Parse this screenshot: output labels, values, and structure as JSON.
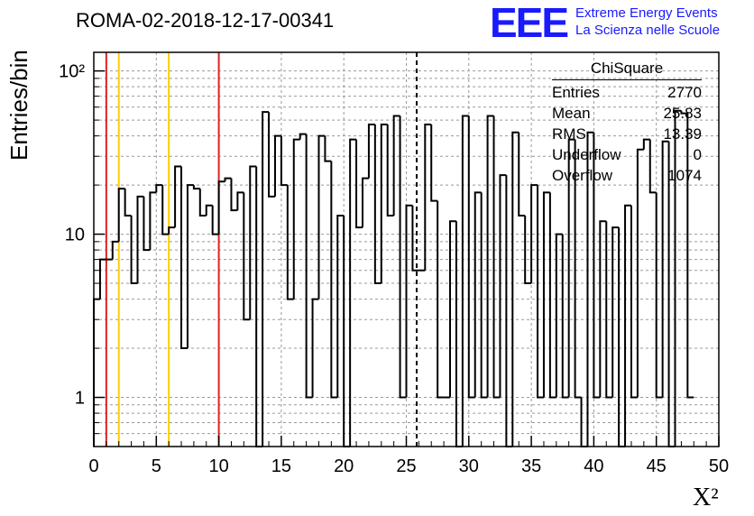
{
  "title": "ROMA-02-2018-12-17-00341",
  "logo": {
    "mark": "EEE",
    "line1": "Extreme Energy Events",
    "line2": "La Scienza nelle Scuole",
    "color": "#1a1aff"
  },
  "stats": {
    "title": "ChiSquare",
    "rows": [
      {
        "label": "Entries",
        "value": "2770"
      },
      {
        "label": "Mean",
        "value": "25.83"
      },
      {
        "label": "RMS",
        "value": "13.39"
      },
      {
        "label": "Underflow",
        "value": "0"
      },
      {
        "label": "Overflow",
        "value": "1074"
      }
    ]
  },
  "chart_data": {
    "type": "histogram",
    "xlabel": "X²",
    "ylabel": "Entries/bin",
    "xlim": [
      0,
      50
    ],
    "ylim": [
      0.5,
      130
    ],
    "y_scale": "log",
    "grid": true,
    "bin_width": 0.5,
    "x_ticks": [
      0,
      5,
      10,
      15,
      20,
      25,
      30,
      35,
      40,
      45,
      50
    ],
    "y_ticks": [
      {
        "value": 1,
        "label": "1"
      },
      {
        "value": 10,
        "label": "10"
      },
      {
        "value": 100,
        "label": "10²"
      }
    ],
    "bin_values": [
      4,
      7,
      7,
      9,
      19,
      13,
      5,
      17,
      8,
      18,
      20,
      10,
      11,
      26,
      2,
      20,
      19,
      13,
      15,
      10,
      21,
      22,
      14,
      18,
      3,
      26,
      0,
      56,
      17,
      40,
      20,
      4,
      38,
      41,
      1,
      4,
      40,
      28,
      1,
      13,
      0,
      38,
      11,
      22,
      47,
      5,
      47,
      13,
      53,
      1,
      15,
      6,
      6,
      47,
      16,
      1,
      1,
      12,
      0,
      53,
      1,
      18,
      1,
      53,
      1,
      23,
      0,
      42,
      13,
      5,
      20,
      1,
      18,
      1,
      10,
      1,
      38,
      1,
      0,
      42,
      1,
      12,
      1,
      11,
      0,
      15,
      1,
      33,
      38,
      18,
      1,
      37,
      0,
      57,
      55,
      1
    ],
    "vlines": [
      {
        "x": 1,
        "color": "#dd2222"
      },
      {
        "x": 2,
        "color": "#ffcc00"
      },
      {
        "x": 6,
        "color": "#ffcc00"
      },
      {
        "x": 10,
        "color": "#dd2222"
      },
      {
        "x": 25.83,
        "color": "#000000",
        "dashed": true
      }
    ]
  }
}
